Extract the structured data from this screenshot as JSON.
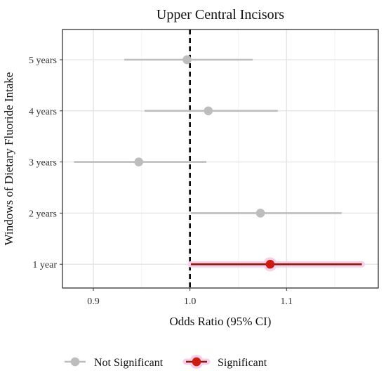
{
  "chart_data": {
    "type": "scatter",
    "title": "Upper Central Incisors",
    "xlabel": "Odds Ratio (95% CI)",
    "ylabel": "Windows of Dietary Fluoride Intake",
    "xlim": [
      0.868,
      1.195
    ],
    "xticks": [
      0.9,
      1.0,
      1.1
    ],
    "xtick_labels": [
      "0.9",
      "1.0",
      "1.1"
    ],
    "categories": [
      "5 years",
      "4 years",
      "3 years",
      "2 years",
      "1 year"
    ],
    "reference_line": 1.0,
    "grid": true,
    "legend_position": "bottom",
    "series": [
      {
        "name": "Not Significant",
        "color": "#bdbdbd",
        "points": [
          {
            "category": "5 years",
            "estimate": 0.997,
            "lower": 0.932,
            "upper": 1.065
          },
          {
            "category": "4 years",
            "estimate": 1.019,
            "lower": 0.953,
            "upper": 1.091
          },
          {
            "category": "3 years",
            "estimate": 0.947,
            "lower": 0.88,
            "upper": 1.017
          },
          {
            "category": "2 years",
            "estimate": 1.073,
            "lower": 1.001,
            "upper": 1.157
          }
        ]
      },
      {
        "name": "Significant",
        "color": "#cc1c12",
        "line_color": "#8b1a0c",
        "glow_color": "#f7cfe8",
        "points": [
          {
            "category": "1 year",
            "estimate": 1.083,
            "lower": 1.001,
            "upper": 1.178
          }
        ]
      }
    ]
  }
}
